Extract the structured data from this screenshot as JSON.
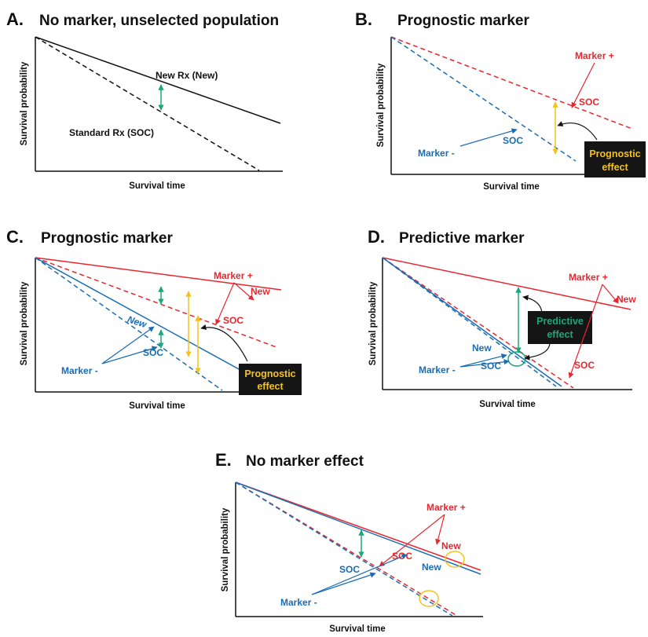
{
  "colors": {
    "black": "#111111",
    "red": "#e8262f",
    "blue": "#1a6cb5",
    "green": "#1aa77a",
    "yellow": "#f6c218",
    "box_bg": "#151515"
  },
  "common": {
    "x_axis_label": "Survival time",
    "y_axis_label": "Survival probability"
  },
  "panels": {
    "A": {
      "letter": "A.",
      "title": "No marker, unselected population",
      "new_label": "New Rx (New)",
      "soc_label": "Standard Rx (SOC)"
    },
    "B": {
      "letter": "B.",
      "title": "Prognostic marker",
      "marker_pos": "Marker +",
      "soc_red": "SOC",
      "marker_neg": "Marker -",
      "soc_blue": "SOC",
      "box_line1": "Prognostic",
      "box_line2": "effect"
    },
    "C": {
      "letter": "C.",
      "title": "Prognostic marker",
      "marker_pos": "Marker +",
      "new_red": "New",
      "soc_red": "SOC",
      "new_blue": "New",
      "soc_blue": "SOC",
      "marker_neg": "Marker -",
      "box_line1": "Prognostic",
      "box_line2": "effect"
    },
    "D": {
      "letter": "D.",
      "title": "Predictive marker",
      "marker_pos": "Marker +",
      "new_red": "New",
      "soc_red": "SOC",
      "new_blue": "New",
      "soc_blue": "SOC",
      "marker_neg": "Marker -",
      "box_line1": "Predictive",
      "box_line2": "effect"
    },
    "E": {
      "letter": "E.",
      "title": "No marker effect",
      "marker_pos": "Marker +",
      "new_red": "New",
      "soc_red": "SOC",
      "new_blue": "New",
      "soc_blue": "SOC",
      "marker_neg": "Marker -"
    }
  }
}
